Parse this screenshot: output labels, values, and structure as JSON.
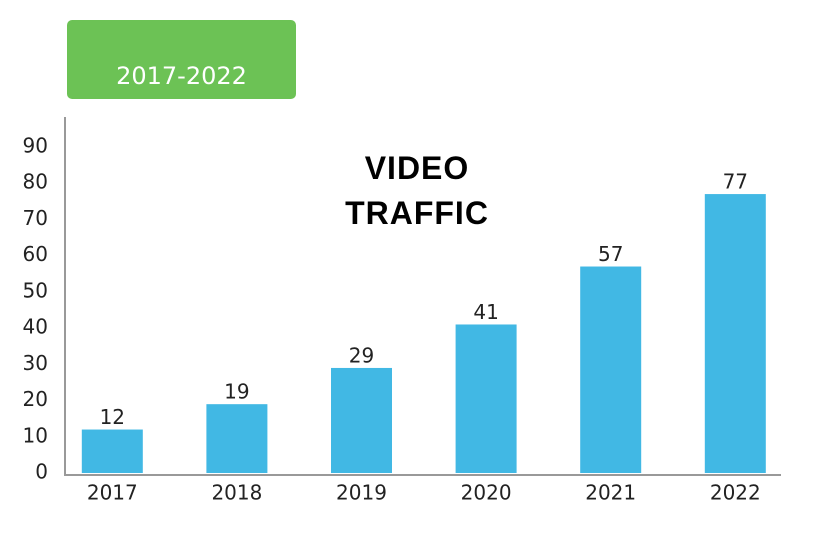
{
  "chart_data": {
    "type": "bar",
    "title": "VIDEO TRAFFIC",
    "subtitle": "2017-2022",
    "categories": [
      "2017",
      "2018",
      "2019",
      "2020",
      "2021",
      "2022"
    ],
    "values": [
      12,
      19,
      29,
      41,
      57,
      77
    ],
    "color": "#41b8e4",
    "ylim": [
      0,
      98
    ],
    "yticks": [
      0,
      10,
      20,
      30,
      40,
      50,
      60,
      70,
      80,
      90
    ],
    "grid": false
  }
}
